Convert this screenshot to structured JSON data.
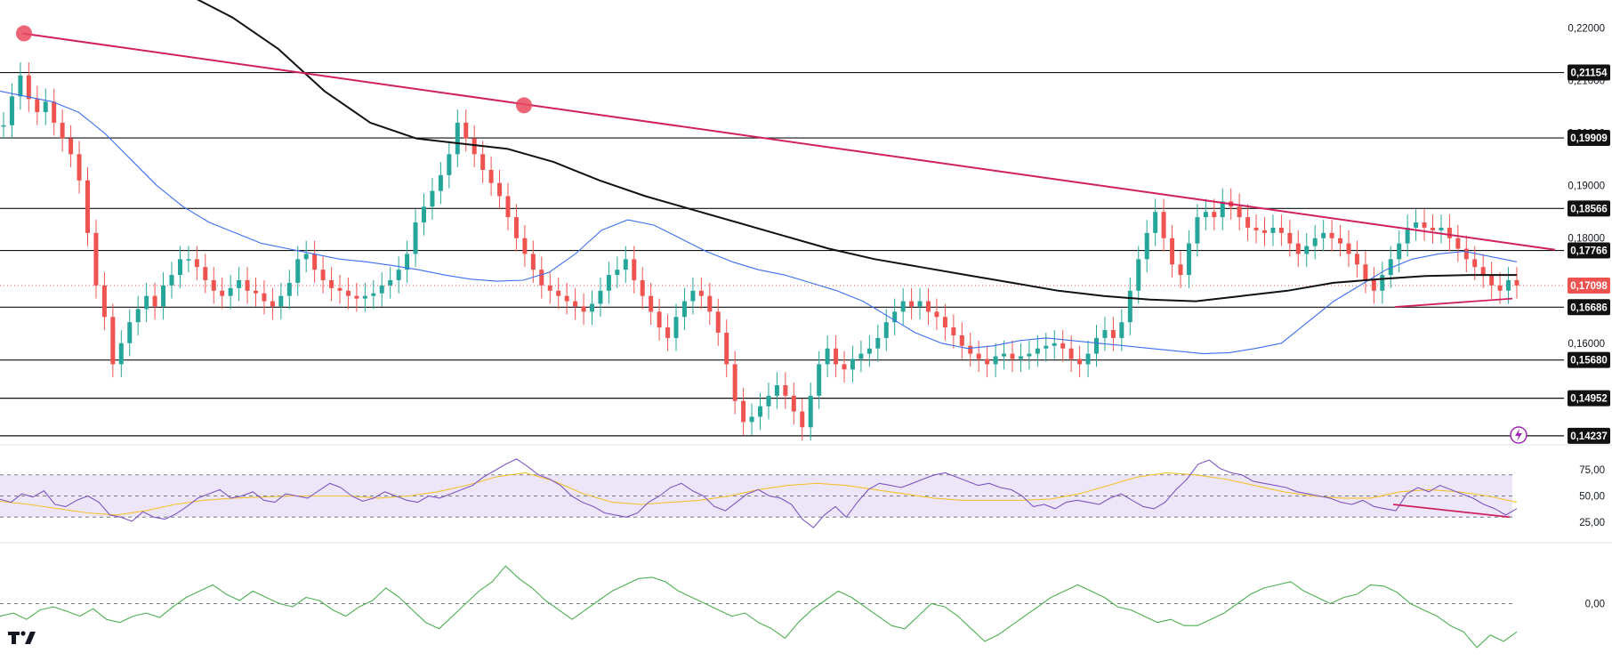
{
  "chart_data": [
    {
      "type": "line",
      "panel": "price",
      "y_axis_ticks": [
        "0,22000",
        "0,21000",
        "0,20000",
        "0,19000",
        "0,18000",
        "0,16000"
      ],
      "y_axis_tick_values": [
        0.22,
        0.21,
        0.2,
        0.19,
        0.18,
        0.16
      ],
      "ylim": [
        0.1415,
        0.224
      ],
      "price_levels": [
        {
          "label": "0,21154",
          "value": 0.21154
        },
        {
          "label": "0,19909",
          "value": 0.19909
        },
        {
          "label": "0,18566",
          "value": 0.18566
        },
        {
          "label": "0,17766",
          "value": 0.17766
        },
        {
          "label": "0,16686",
          "value": 0.16686
        },
        {
          "label": "0,15680",
          "value": 0.1568
        },
        {
          "label": "0,14952",
          "value": 0.14952
        },
        {
          "label": "0,14237",
          "value": 0.14237
        }
      ],
      "current_price": {
        "label": "0,17098",
        "value": 0.17098
      },
      "series": [
        {
          "kind": "close-line",
          "color": "#26a69a",
          "values": [
            0.2015,
            0.207,
            0.211,
            0.2065,
            0.204,
            0.206,
            0.202,
            0.199,
            0.196,
            0.191,
            0.181,
            0.171,
            0.165,
            0.156,
            0.16,
            0.164,
            0.1665,
            0.169,
            0.167,
            0.171,
            0.173,
            0.176,
            0.176,
            0.1745,
            0.172,
            0.17,
            0.169,
            0.1705,
            0.172,
            0.17,
            0.1695,
            0.168,
            0.167,
            0.169,
            0.1715,
            0.176,
            0.177,
            0.174,
            0.172,
            0.1705,
            0.17,
            0.169,
            0.1685,
            0.169,
            0.1695,
            0.171,
            0.172,
            0.174,
            0.177,
            0.183,
            0.186,
            0.189,
            0.192,
            0.196,
            0.202,
            0.199,
            0.196,
            0.193,
            0.1905,
            0.188,
            0.184,
            0.18,
            0.177,
            0.174,
            0.171,
            0.17,
            0.169,
            0.168,
            0.167,
            0.166,
            0.1675,
            0.17,
            0.173,
            0.174,
            0.176,
            0.172,
            0.169,
            0.166,
            0.163,
            0.161,
            0.165,
            0.168,
            0.17,
            0.169,
            0.166,
            0.162,
            0.156,
            0.149,
            0.145,
            0.146,
            0.148,
            0.15,
            0.152,
            0.15,
            0.147,
            0.144,
            0.15,
            0.156,
            0.159,
            0.156,
            0.155,
            0.157,
            0.158,
            0.159,
            0.161,
            0.164,
            0.166,
            0.168,
            0.167,
            0.168,
            0.166,
            0.165,
            0.163,
            0.1615,
            0.1595,
            0.158,
            0.157,
            0.156,
            0.1575,
            0.158,
            0.157,
            0.1575,
            0.158,
            0.159,
            0.1595,
            0.16,
            0.159,
            0.157,
            0.156,
            0.158,
            0.161,
            0.1625,
            0.161,
            0.164,
            0.17,
            0.176,
            0.181,
            0.185,
            0.18,
            0.175,
            0.173,
            0.179,
            0.184,
            0.185,
            0.184,
            0.187,
            0.186,
            0.184,
            0.182,
            0.1815,
            0.181,
            0.182,
            0.181,
            0.179,
            0.177,
            0.1785,
            0.18,
            0.181,
            0.18,
            0.179,
            0.177,
            0.175,
            0.172,
            0.17,
            0.173,
            0.176,
            0.179,
            0.182,
            0.183,
            0.182,
            0.1815,
            0.182,
            0.18,
            0.178,
            0.176,
            0.1745,
            0.173,
            0.171,
            0.17,
            0.172,
            0.171
          ]
        },
        {
          "kind": "moving-average",
          "color": "#3b6ef0",
          "values": [
            0.208,
            0.207,
            0.206,
            0.204,
            0.2,
            0.195,
            0.19,
            0.186,
            0.183,
            0.181,
            0.179,
            0.178,
            0.177,
            0.176,
            0.1755,
            0.1748,
            0.174,
            0.173,
            0.1722,
            0.1718,
            0.172,
            0.1735,
            0.177,
            0.1815,
            0.1835,
            0.1825,
            0.18,
            0.1775,
            0.1755,
            0.174,
            0.173,
            0.1715,
            0.17,
            0.168,
            0.165,
            0.162,
            0.16,
            0.159,
            0.1595,
            0.1605,
            0.161,
            0.1605,
            0.16,
            0.1595,
            0.159,
            0.1585,
            0.158,
            0.1582,
            0.159,
            0.16,
            0.164,
            0.168,
            0.171,
            0.174,
            0.176,
            0.177,
            0.1775,
            0.1765,
            0.1755
          ]
        },
        {
          "kind": "moving-average",
          "color": "#111111",
          "values": [
            0.2265,
            0.222,
            0.216,
            0.208,
            0.202,
            0.199,
            0.198,
            0.197,
            0.1945,
            0.191,
            0.188,
            0.1855,
            0.183,
            0.1805,
            0.178,
            0.176,
            0.1745,
            0.173,
            0.1715,
            0.17,
            0.169,
            0.1683,
            0.168,
            0.169,
            0.17,
            0.1715,
            0.1722,
            0.1728,
            0.173,
            0.173
          ]
        }
      ],
      "trendlines": [
        {
          "kind": "descending-resistance",
          "color": "#d0215f",
          "points": [
            [
              0,
              0.219
            ],
            [
              113,
              0.2053
            ],
            [
              178,
              0.1778
            ]
          ]
        },
        {
          "kind": "rising-support",
          "color": "#d0215f",
          "points": [
            [
              156,
              0.1669
            ],
            [
              169,
              0.1685
            ]
          ]
        }
      ],
      "markers": [
        {
          "color": "#e84a5f",
          "x": 2,
          "y": 0.219
        },
        {
          "color": "#e84a5f",
          "x": 58,
          "y": 0.2053
        }
      ]
    },
    {
      "type": "line",
      "panel": "rsi",
      "y_axis_ticks": [
        "75,00",
        "50,00",
        "25,00"
      ],
      "y_axis_tick_values": [
        75,
        50,
        25
      ],
      "ylim": [
        10,
        90
      ],
      "band": [
        30,
        70
      ],
      "band_color": "#e6dcf7",
      "series": [
        {
          "kind": "rsi",
          "color": "#7e57c2",
          "values": [
            47,
            44,
            52,
            49,
            55,
            42,
            40,
            46,
            50,
            44,
            32,
            30,
            26,
            35,
            30,
            28,
            33,
            40,
            48,
            52,
            56,
            48,
            50,
            54,
            46,
            44,
            52,
            50,
            48,
            55,
            62,
            58,
            50,
            45,
            48,
            54,
            50,
            46,
            44,
            50,
            48,
            52,
            56,
            60,
            68,
            74,
            80,
            85,
            78,
            70,
            66,
            60,
            50,
            44,
            40,
            34,
            32,
            30,
            34,
            44,
            50,
            58,
            62,
            55,
            50,
            40,
            36,
            44,
            52,
            56,
            50,
            48,
            42,
            28,
            20,
            32,
            40,
            30,
            44,
            56,
            62,
            60,
            58,
            62,
            66,
            70,
            72,
            68,
            64,
            60,
            62,
            58,
            56,
            50,
            40,
            42,
            38,
            44,
            46,
            44,
            42,
            48,
            52,
            46,
            40,
            38,
            44,
            56,
            66,
            80,
            84,
            76,
            72,
            70,
            64,
            62,
            60,
            58,
            54,
            52,
            50,
            48,
            44,
            42,
            46,
            40,
            38,
            36,
            52,
            58,
            54,
            60,
            56,
            52,
            48,
            42,
            38,
            32,
            38
          ]
        },
        {
          "kind": "rsi-average",
          "color": "#f2c230",
          "values": [
            45,
            42,
            38,
            34,
            32,
            36,
            42,
            46,
            48,
            49,
            50,
            50,
            50,
            48,
            50,
            54,
            60,
            68,
            72,
            64,
            52,
            44,
            42,
            44,
            46,
            50,
            56,
            60,
            62,
            60,
            56,
            52,
            48,
            46,
            46,
            46,
            47,
            52,
            60,
            68,
            72,
            70,
            66,
            60,
            54,
            50,
            48,
            48,
            54,
            56,
            54,
            50,
            44
          ]
        }
      ],
      "trendlines": [
        {
          "kind": "falling-divergence",
          "color": "#d0215f",
          "points": [
            [
              1356,
              42
            ],
            [
              1465,
              30
            ]
          ]
        }
      ]
    },
    {
      "type": "line",
      "panel": "oscillator",
      "y_axis_ticks": [
        "0,00"
      ],
      "y_axis_tick_values": [
        0
      ],
      "ylim": [
        -8,
        9
      ],
      "series": [
        {
          "kind": "oscillator",
          "color": "#4caf50",
          "values": [
            -2,
            -1.5,
            -2.5,
            -1,
            -0.5,
            -1.2,
            -2,
            -0.8,
            -2.5,
            -3,
            -2,
            -1.5,
            -2.2,
            -0.5,
            1,
            2,
            3,
            1.5,
            0.5,
            2,
            1,
            0,
            -0.5,
            1,
            0.5,
            -1,
            -2,
            -0.5,
            0.5,
            2.5,
            1,
            -1,
            -3,
            -4,
            -2,
            0,
            2,
            3.5,
            6,
            4,
            2.5,
            0.5,
            -1,
            -2.5,
            -1,
            0.5,
            2,
            3,
            4,
            4.2,
            3.5,
            2,
            1,
            0,
            -1,
            -2,
            -1.5,
            -3,
            -4,
            -5.5,
            -3,
            -1,
            0.5,
            2,
            1,
            -0.5,
            -2,
            -3.5,
            -4,
            -2,
            0,
            -0.5,
            -2,
            -4,
            -6,
            -5,
            -3.5,
            -2,
            -0.5,
            1,
            2,
            3,
            2,
            1,
            -0.5,
            -1,
            -2,
            -3,
            -2.5,
            -3.5,
            -3.5,
            -2.5,
            -1.5,
            0,
            1.5,
            2.5,
            3,
            3.5,
            2,
            1,
            0,
            1,
            1.5,
            3,
            2.8,
            1.8,
            0,
            -1,
            -2,
            -3.5,
            -4.5,
            -7,
            -5,
            -6,
            -4.5
          ]
        }
      ]
    }
  ]
}
